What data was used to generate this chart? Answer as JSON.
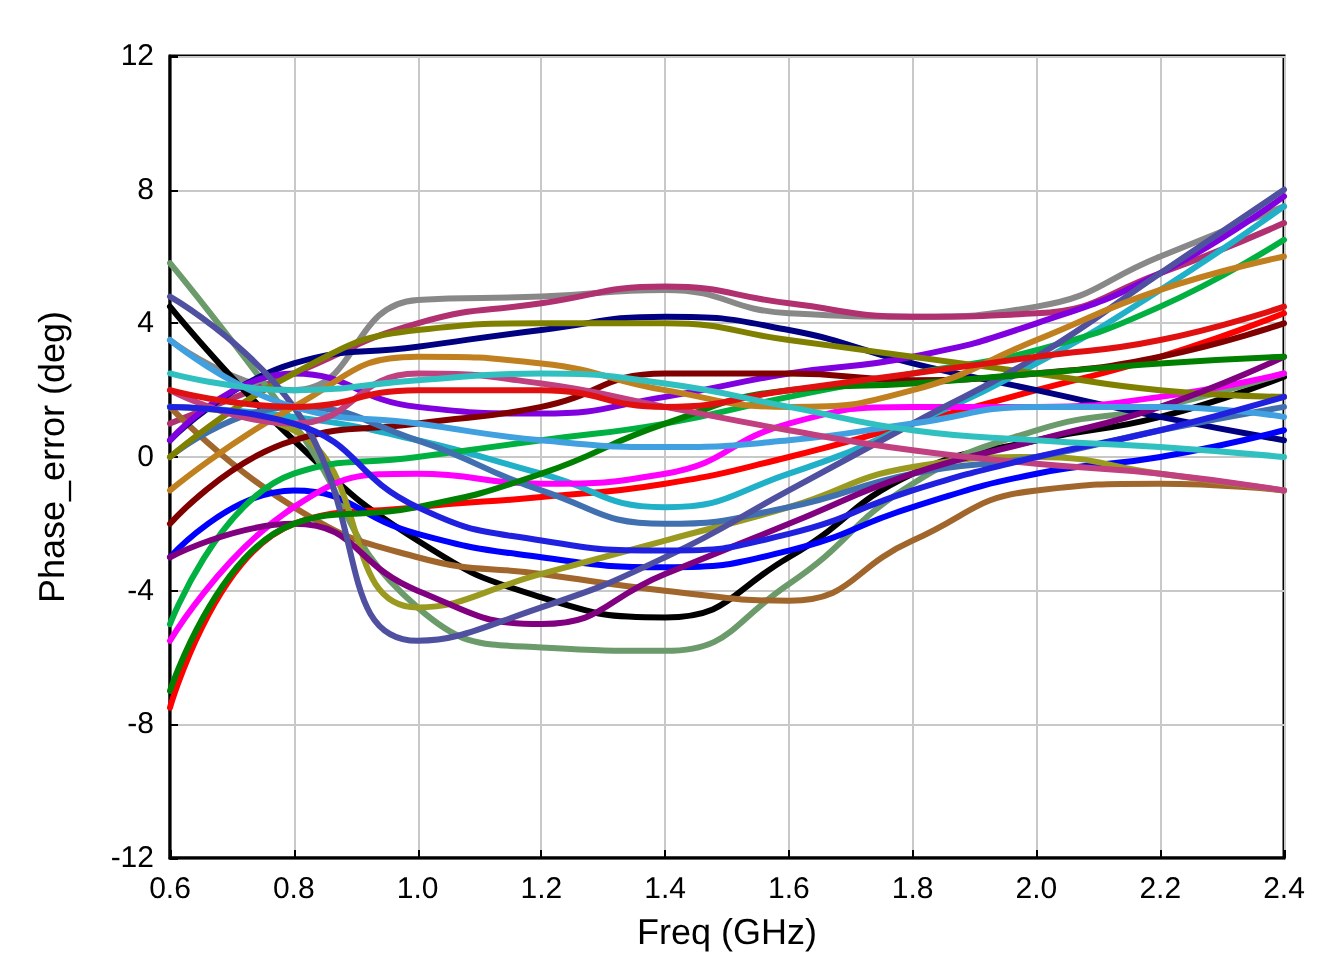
{
  "chart_data": {
    "type": "line",
    "xlabel": "Freq (GHz)",
    "ylabel": "Phase_error (deg)",
    "x": [
      0.6,
      0.8,
      1.0,
      1.2,
      1.4,
      1.6,
      1.8,
      2.0,
      2.2,
      2.4
    ],
    "xlim": [
      0.6,
      2.4
    ],
    "xticks": [
      0.6,
      0.8,
      {
        "value": 1.0,
        "label": "1.0"
      },
      1.2,
      1.4,
      1.6,
      1.8,
      {
        "value": 2.0,
        "label": "2.0"
      },
      2.2,
      2.4
    ],
    "ylim": [
      -12,
      12
    ],
    "yticks": [
      -12,
      -8,
      -4,
      0,
      4,
      8,
      12
    ],
    "grid": true,
    "marker": "none",
    "line_style": "solid",
    "series": [
      {
        "color": "#888888",
        "values": [
          3.5,
          2,
          4.7,
          4.8,
          5,
          4.3,
          4.2,
          4.5,
          6,
          7.5
        ]
      },
      {
        "color": "#b03070",
        "values": [
          1,
          2.5,
          4,
          4.6,
          5.1,
          4.6,
          4.2,
          4.3,
          5.5,
          7
        ]
      },
      {
        "color": "#000000",
        "values": [
          4.5,
          0.5,
          -2.5,
          -4.2,
          -4.8,
          -3,
          -0.5,
          0.5,
          1.2,
          2.4
        ]
      },
      {
        "color": "#6b9a6b",
        "values": [
          5.8,
          1,
          -4.5,
          -5.7,
          -5.8,
          -3.8,
          -0.8,
          0.8,
          1.5,
          2.5
        ]
      },
      {
        "color": "#ff0000",
        "values": [
          -7.5,
          -2,
          -1.5,
          -1.2,
          -0.8,
          0,
          1,
          2,
          3,
          4.3
        ]
      },
      {
        "color": "#a0662b",
        "values": [
          1.5,
          -1.5,
          -3,
          -3.5,
          -4,
          -4.3,
          -2.5,
          -1,
          -0.8,
          -1
        ]
      },
      {
        "color": "#000080",
        "values": [
          0.5,
          2.8,
          3.3,
          3.8,
          4.2,
          3.8,
          2.8,
          2,
          1.2,
          0.5
        ]
      },
      {
        "color": "#0000ff",
        "values": [
          -3,
          -1,
          -2.3,
          -3,
          -3.3,
          -2.8,
          -1.5,
          -0.5,
          0,
          0.8
        ]
      },
      {
        "color": "#9a9a20",
        "values": [
          1.5,
          0.8,
          -4.5,
          -3.5,
          -2.5,
          -1.5,
          -0.3,
          0,
          -0.5,
          -1
        ]
      },
      {
        "color": "#20b0c8",
        "values": [
          1.5,
          1.2,
          0.5,
          -0.5,
          -1.5,
          -0.5,
          1,
          2.8,
          5,
          7.5
        ]
      },
      {
        "color": "#00b040",
        "values": [
          -5,
          -0.5,
          0,
          0.5,
          1,
          1.8,
          2.5,
          3.2,
          4.5,
          6.5
        ]
      },
      {
        "color": "#ff00ff",
        "values": [
          -5.5,
          -1.5,
          -0.5,
          -0.8,
          -0.5,
          1,
          1.5,
          1.5,
          1.8,
          2.5
        ]
      },
      {
        "color": "#8000e0",
        "values": [
          0.5,
          2.5,
          1.5,
          1.3,
          1.8,
          2.5,
          3,
          4,
          5.5,
          7.8
        ]
      },
      {
        "color": "#800000",
        "values": [
          -2,
          0.5,
          1,
          1.5,
          2.5,
          2.5,
          2.3,
          2.5,
          3,
          4
        ]
      },
      {
        "color": "#4070b0",
        "values": [
          0,
          1.5,
          0.5,
          -1,
          -2,
          -1.5,
          -0.5,
          0,
          0.8,
          1.5
        ]
      },
      {
        "color": "#808000",
        "values": [
          0,
          2.5,
          3.8,
          4,
          4,
          3.5,
          3,
          2.5,
          2,
          1.8
        ]
      },
      {
        "color": "#800080",
        "values": [
          -3,
          -2,
          -4,
          -5,
          -3.5,
          -2,
          -0.5,
          0.5,
          1.5,
          3
        ]
      },
      {
        "color": "#5050a0",
        "values": [
          4.8,
          1.5,
          -5.5,
          -4.5,
          -3,
          -1,
          1,
          3,
          5.5,
          8
        ]
      },
      {
        "color": "#008000",
        "values": [
          -7,
          -2,
          -1.5,
          -0.5,
          1,
          2,
          2.2,
          2.5,
          2.8,
          3
        ]
      },
      {
        "color": "#40a0e0",
        "values": [
          3.5,
          1.5,
          1,
          0.5,
          0.3,
          0.5,
          1,
          1.5,
          1.5,
          1.2
        ]
      },
      {
        "color": "#c08020",
        "values": [
          -1,
          1.5,
          3,
          2.8,
          2,
          1.5,
          2,
          3.5,
          5,
          6
        ]
      },
      {
        "color": "#c04080",
        "values": [
          2,
          1,
          2.5,
          2.2,
          1.5,
          0.8,
          0.2,
          -0.2,
          -0.5,
          -1
        ]
      },
      {
        "color": "#2020e0",
        "values": [
          1.5,
          1,
          -1.5,
          -2.5,
          -2.8,
          -2.3,
          -1,
          0,
          0.8,
          1.8
        ]
      },
      {
        "color": "#e01010",
        "values": [
          2,
          1.5,
          2,
          2,
          1.5,
          2,
          2.5,
          3,
          3.5,
          4.5
        ]
      },
      {
        "color": "#30c0c0",
        "values": [
          2.5,
          2,
          2.3,
          2.5,
          2.2,
          1.5,
          0.8,
          0.5,
          0.3,
          0
        ]
      }
    ]
  }
}
